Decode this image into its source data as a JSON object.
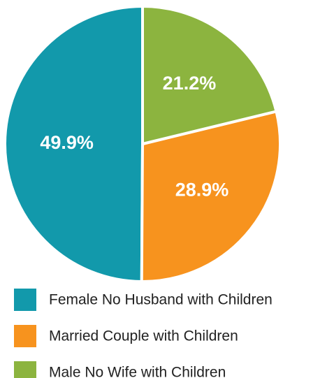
{
  "chart_data": {
    "type": "pie",
    "categories": [
      "Female No Husband with Children",
      "Married Couple with Children",
      "Male No Wife with Children"
    ],
    "values": [
      49.9,
      28.9,
      21.2
    ],
    "value_labels": [
      "49.9%",
      "28.9%",
      "21.2%"
    ],
    "colors": [
      "#1299ab",
      "#f7931e",
      "#8cb43f"
    ]
  }
}
